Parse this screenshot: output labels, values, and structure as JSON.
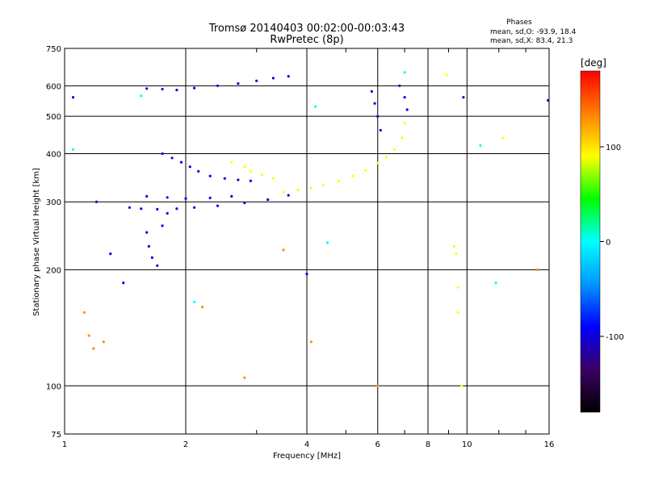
{
  "chart_data": {
    "type": "scatter",
    "title": "Tromsø 20140403 00:02:00-00:03:43",
    "subtitle": "RwPretec (8p)",
    "xlabel": "Frequency [MHz]",
    "ylabel": "Stationary phase Virtual Height [km]",
    "x_scale": "log",
    "y_scale": "log",
    "xlim": [
      1,
      16
    ],
    "ylim": [
      75,
      750
    ],
    "x_ticks": [
      1,
      2,
      4,
      6,
      8,
      10,
      16
    ],
    "y_ticks": [
      75,
      100,
      200,
      300,
      400,
      500,
      600,
      750
    ],
    "grid": true,
    "stats": {
      "heading": "Phases",
      "line_o": "mean, sd,O: -93.9, 18.4",
      "line_x": "mean, sd,X:  83.4, 21.3"
    },
    "colorbar": {
      "label": "[deg]",
      "range": [
        -180,
        180
      ],
      "ticks": [
        100,
        0,
        -100
      ],
      "colors": [
        "#000000",
        "#3c0064",
        "#0000ff",
        "#0096ff",
        "#00ffff",
        "#00ff00",
        "#ffff00",
        "#ff8000",
        "#ff0000"
      ]
    },
    "series": [
      {
        "phase": -95,
        "points": [
          [
            1.45,
            290
          ],
          [
            1.55,
            288
          ],
          [
            1.7,
            287
          ],
          [
            1.9,
            288
          ],
          [
            2.1,
            290
          ],
          [
            2.4,
            293
          ],
          [
            2.8,
            298
          ],
          [
            3.2,
            304
          ],
          [
            3.6,
            312
          ],
          [
            1.6,
            310
          ],
          [
            1.8,
            308
          ],
          [
            2.0,
            306
          ],
          [
            2.3,
            307
          ],
          [
            2.6,
            310
          ],
          [
            1.75,
            400
          ],
          [
            1.85,
            390
          ],
          [
            1.95,
            380
          ],
          [
            2.05,
            370
          ],
          [
            2.15,
            360
          ],
          [
            2.3,
            350
          ],
          [
            2.5,
            345
          ],
          [
            2.7,
            342
          ],
          [
            2.9,
            340
          ],
          [
            1.6,
            250
          ],
          [
            1.62,
            230
          ],
          [
            1.65,
            215
          ],
          [
            1.7,
            205
          ],
          [
            1.75,
            260
          ],
          [
            1.8,
            280
          ],
          [
            1.6,
            590
          ],
          [
            1.75,
            588
          ],
          [
            1.9,
            585
          ],
          [
            2.1,
            592
          ],
          [
            2.4,
            600
          ],
          [
            2.7,
            608
          ],
          [
            3.0,
            618
          ],
          [
            3.3,
            628
          ],
          [
            3.6,
            635
          ],
          [
            5.8,
            580
          ],
          [
            5.9,
            540
          ],
          [
            6.0,
            500
          ],
          [
            6.1,
            460
          ],
          [
            6.8,
            600
          ],
          [
            7.0,
            560
          ],
          [
            7.1,
            520
          ],
          [
            1.05,
            560
          ],
          [
            1.2,
            300
          ],
          [
            1.3,
            220
          ],
          [
            1.4,
            185
          ],
          [
            4.0,
            195
          ],
          [
            9.8,
            560
          ],
          [
            15.9,
            550
          ]
        ]
      },
      {
        "phase": 90,
        "points": [
          [
            3.5,
            318
          ],
          [
            3.8,
            322
          ],
          [
            4.1,
            326
          ],
          [
            4.4,
            332
          ],
          [
            4.8,
            340
          ],
          [
            5.2,
            350
          ],
          [
            5.6,
            362
          ],
          [
            6.0,
            378
          ],
          [
            6.3,
            392
          ],
          [
            6.6,
            410
          ],
          [
            6.9,
            440
          ],
          [
            7.0,
            480
          ],
          [
            2.9,
            360
          ],
          [
            3.1,
            352
          ],
          [
            3.3,
            345
          ],
          [
            2.6,
            380
          ],
          [
            2.8,
            370
          ],
          [
            9.3,
            230
          ],
          [
            9.4,
            220
          ],
          [
            9.5,
            180
          ],
          [
            9.5,
            155
          ],
          [
            9.7,
            100
          ],
          [
            8.9,
            640
          ],
          [
            12.3,
            440
          ]
        ]
      },
      {
        "phase": 130,
        "points": [
          [
            1.12,
            155
          ],
          [
            1.15,
            135
          ],
          [
            1.18,
            125
          ],
          [
            1.25,
            130
          ],
          [
            2.8,
            105
          ],
          [
            3.5,
            225
          ],
          [
            4.1,
            130
          ],
          [
            6.0,
            100
          ],
          [
            15.0,
            200
          ],
          [
            2.2,
            160
          ]
        ]
      },
      {
        "phase": 0,
        "points": [
          [
            1.05,
            410
          ],
          [
            1.55,
            565
          ],
          [
            2.1,
            165
          ],
          [
            4.5,
            235
          ],
          [
            7.0,
            650
          ],
          [
            10.8,
            420
          ],
          [
            11.8,
            185
          ],
          [
            4.2,
            530
          ]
        ]
      }
    ]
  }
}
